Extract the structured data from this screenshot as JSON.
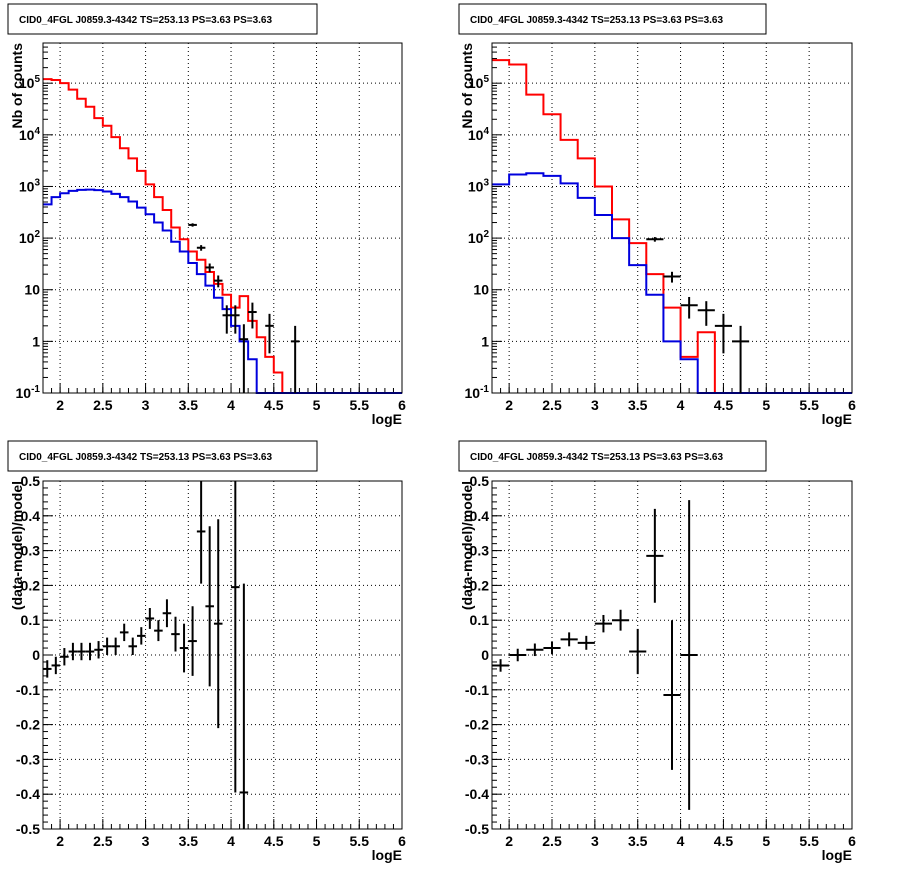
{
  "chart_data": [
    {
      "type": "histogram",
      "title": "CID0_4FGL J0859.3-4342 TS=253.13 PS=3.63 PS=3.63",
      "xlabel": "logE",
      "ylabel": "Nb of counts",
      "xlim": [
        1.8,
        6.0
      ],
      "ylim": [
        0.1,
        600000
      ],
      "yscale": "log",
      "grid": true,
      "x_ticks": [
        "2",
        "2.5",
        "3",
        "3.5",
        "4",
        "4.5",
        "5",
        "5.5",
        "6"
      ],
      "y_ticks": [
        "10^-1",
        "1",
        "10",
        "10^2",
        "10^3",
        "10^4",
        "10^5"
      ],
      "bin_edges": [
        1.8,
        1.9,
        2.0,
        2.1,
        2.2,
        2.3,
        2.4,
        2.5,
        2.6,
        2.7,
        2.8,
        2.9,
        3.0,
        3.1,
        3.2,
        3.3,
        3.4,
        3.5,
        3.6,
        3.7,
        3.8,
        3.9,
        4.0,
        4.1,
        4.2,
        4.3,
        4.4,
        4.5,
        4.6,
        4.7,
        4.8,
        4.9,
        5.0,
        5.1,
        5.2,
        5.3,
        5.4,
        5.5,
        5.6,
        5.7,
        5.8,
        5.9,
        6.0
      ],
      "series": [
        {
          "color": "#ff0000",
          "values": [
            120000,
            115000,
            100000,
            75000,
            50000,
            35000,
            21000,
            15000,
            9000,
            5500,
            3500,
            2000,
            1100,
            620,
            350,
            160,
            95,
            55,
            38,
            22,
            13,
            8,
            4.5,
            7.5,
            2.5,
            1.2,
            0.5,
            0.25,
            0.1,
            0.1,
            0.1,
            0.1,
            0.1,
            0.1,
            0.1,
            0.1,
            0.1,
            0.1,
            0.1,
            0.1,
            0.1,
            0.1
          ]
        },
        {
          "color": "#0000dd",
          "values": [
            450,
            620,
            740,
            820,
            860,
            870,
            850,
            800,
            720,
            620,
            510,
            390,
            290,
            200,
            140,
            85,
            55,
            33,
            20,
            12,
            7,
            4.2,
            2,
            1,
            0.45,
            0.1,
            0.1,
            0.1,
            0.1,
            0.1,
            0.1,
            0.1,
            0.1,
            0.1,
            0.1,
            0.1,
            0.1,
            0.1,
            0.1,
            0.1,
            0.1,
            0.1
          ]
        }
      ],
      "points": [
        {
          "x": 3.55,
          "y": 180
        },
        {
          "x": 3.65,
          "y": 65
        },
        {
          "x": 3.75,
          "y": 27
        },
        {
          "x": 3.85,
          "y": 15
        },
        {
          "x": 3.95,
          "y": 3.2
        },
        {
          "x": 4.05,
          "y": 3.2
        },
        {
          "x": 4.15,
          "y": 1.1
        },
        {
          "x": 4.25,
          "y": 3.7
        },
        {
          "x": 4.45,
          "y": 2
        },
        {
          "x": 4.75,
          "y": 1
        }
      ]
    },
    {
      "type": "histogram",
      "title": "CID0_4FGL J0859.3-4342 TS=253.13 PS=3.63 PS=3.63",
      "xlabel": "logE",
      "ylabel": "Nb of counts",
      "xlim": [
        1.8,
        6.0
      ],
      "ylim": [
        0.1,
        600000
      ],
      "yscale": "log",
      "grid": true,
      "x_ticks": [
        "2",
        "2.5",
        "3",
        "3.5",
        "4",
        "4.5",
        "5",
        "5.5",
        "6"
      ],
      "y_ticks": [
        "10^-1",
        "1",
        "10",
        "10^2",
        "10^3",
        "10^4",
        "10^5"
      ],
      "bin_edges": [
        1.8,
        2.0,
        2.2,
        2.4,
        2.6,
        2.8,
        3.0,
        3.2,
        3.4,
        3.6,
        3.8,
        4.0,
        4.2,
        4.4,
        4.6,
        4.8,
        5.0,
        5.2,
        5.4,
        5.6,
        5.8,
        6.0
      ],
      "series": [
        {
          "color": "#ff0000",
          "values": [
            280000,
            230000,
            60000,
            25000,
            8000,
            3500,
            1000,
            230,
            80,
            20,
            4.5,
            0.5,
            1.5,
            0.1,
            0.1,
            0.1,
            0.1,
            0.1,
            0.1,
            0.1,
            0.1
          ]
        },
        {
          "color": "#0000dd",
          "values": [
            1100,
            1700,
            1800,
            1600,
            1150,
            600,
            280,
            100,
            30,
            8,
            1,
            0.45,
            0.1,
            0.1,
            0.1,
            0.1,
            0.1,
            0.1,
            0.1,
            0.1,
            0.1
          ]
        }
      ],
      "points": [
        {
          "x": 3.7,
          "y": 95
        },
        {
          "x": 3.9,
          "y": 18
        },
        {
          "x": 4.1,
          "y": 5
        },
        {
          "x": 4.3,
          "y": 4
        },
        {
          "x": 4.5,
          "y": 2
        },
        {
          "x": 4.7,
          "y": 1
        }
      ]
    },
    {
      "type": "scatter",
      "title": "CID0_4FGL J0859.3-4342 TS=253.13 PS=3.63 PS=3.63",
      "xlabel": "logE",
      "ylabel": "(data-model)/model",
      "xlim": [
        1.8,
        6.0
      ],
      "ylim": [
        -0.5,
        0.5
      ],
      "grid": true,
      "x_ticks": [
        "2",
        "2.5",
        "3",
        "3.5",
        "4",
        "4.5",
        "5",
        "5.5",
        "6"
      ],
      "y_ticks": [
        "-0.5",
        "-0.4",
        "-0.3",
        "-0.2",
        "-0.1",
        "0",
        "0.1",
        "0.2",
        "0.3",
        "0.4",
        "0.5"
      ],
      "half_bin_width": 0.05,
      "points": [
        {
          "x": 1.85,
          "y": -0.04,
          "yerr": 0.025
        },
        {
          "x": 1.95,
          "y": -0.03,
          "yerr": 0.025
        },
        {
          "x": 2.05,
          "y": -0.005,
          "yerr": 0.025
        },
        {
          "x": 2.15,
          "y": 0.01,
          "yerr": 0.025
        },
        {
          "x": 2.25,
          "y": 0.01,
          "yerr": 0.025
        },
        {
          "x": 2.35,
          "y": 0.01,
          "yerr": 0.025
        },
        {
          "x": 2.45,
          "y": 0.015,
          "yerr": 0.025
        },
        {
          "x": 2.55,
          "y": 0.025,
          "yerr": 0.025
        },
        {
          "x": 2.65,
          "y": 0.025,
          "yerr": 0.025
        },
        {
          "x": 2.75,
          "y": 0.065,
          "yerr": 0.025
        },
        {
          "x": 2.85,
          "y": 0.025,
          "yerr": 0.025
        },
        {
          "x": 2.95,
          "y": 0.055,
          "yerr": 0.025
        },
        {
          "x": 3.05,
          "y": 0.105,
          "yerr": 0.03
        },
        {
          "x": 3.15,
          "y": 0.07,
          "yerr": 0.03
        },
        {
          "x": 3.25,
          "y": 0.12,
          "yerr": 0.04
        },
        {
          "x": 3.35,
          "y": 0.06,
          "yerr": 0.05
        },
        {
          "x": 3.45,
          "y": 0.02,
          "yerr": 0.07
        },
        {
          "x": 3.55,
          "y": 0.04,
          "yerr": 0.1
        },
        {
          "x": 3.65,
          "y": 0.355,
          "yerr": 0.15
        },
        {
          "x": 3.75,
          "y": 0.14,
          "yerr": 0.23
        },
        {
          "x": 3.85,
          "y": 0.09,
          "yerr": 0.3
        },
        {
          "x": 4.05,
          "y": 0.195,
          "yerr": 0.59
        },
        {
          "x": 4.15,
          "y": -0.395,
          "yerr": 0.6
        }
      ]
    },
    {
      "type": "scatter",
      "title": "CID0_4FGL J0859.3-4342 TS=253.13 PS=3.63 PS=3.63",
      "xlabel": "logE",
      "ylabel": "(data-model)/model",
      "xlim": [
        1.8,
        6.0
      ],
      "ylim": [
        -0.5,
        0.5
      ],
      "grid": true,
      "x_ticks": [
        "2",
        "2.5",
        "3",
        "3.5",
        "4",
        "4.5",
        "5",
        "5.5",
        "6"
      ],
      "y_ticks": [
        "-0.5",
        "-0.4",
        "-0.3",
        "-0.2",
        "-0.1",
        "0",
        "0.1",
        "0.2",
        "0.3",
        "0.4",
        "0.5"
      ],
      "half_bin_width": 0.1,
      "points": [
        {
          "x": 1.9,
          "y": -0.03,
          "yerr": 0.018
        },
        {
          "x": 2.1,
          "y": 0.0,
          "yerr": 0.018
        },
        {
          "x": 2.3,
          "y": 0.015,
          "yerr": 0.018
        },
        {
          "x": 2.5,
          "y": 0.02,
          "yerr": 0.018
        },
        {
          "x": 2.7,
          "y": 0.045,
          "yerr": 0.02
        },
        {
          "x": 2.9,
          "y": 0.035,
          "yerr": 0.02
        },
        {
          "x": 3.1,
          "y": 0.09,
          "yerr": 0.025
        },
        {
          "x": 3.3,
          "y": 0.1,
          "yerr": 0.03
        },
        {
          "x": 3.5,
          "y": 0.01,
          "yerr": 0.065
        },
        {
          "x": 3.7,
          "y": 0.285,
          "yerr": 0.135
        },
        {
          "x": 3.9,
          "y": -0.115,
          "yerr": 0.215
        },
        {
          "x": 4.1,
          "y": 0.0,
          "yerr": 0.445
        }
      ]
    }
  ]
}
